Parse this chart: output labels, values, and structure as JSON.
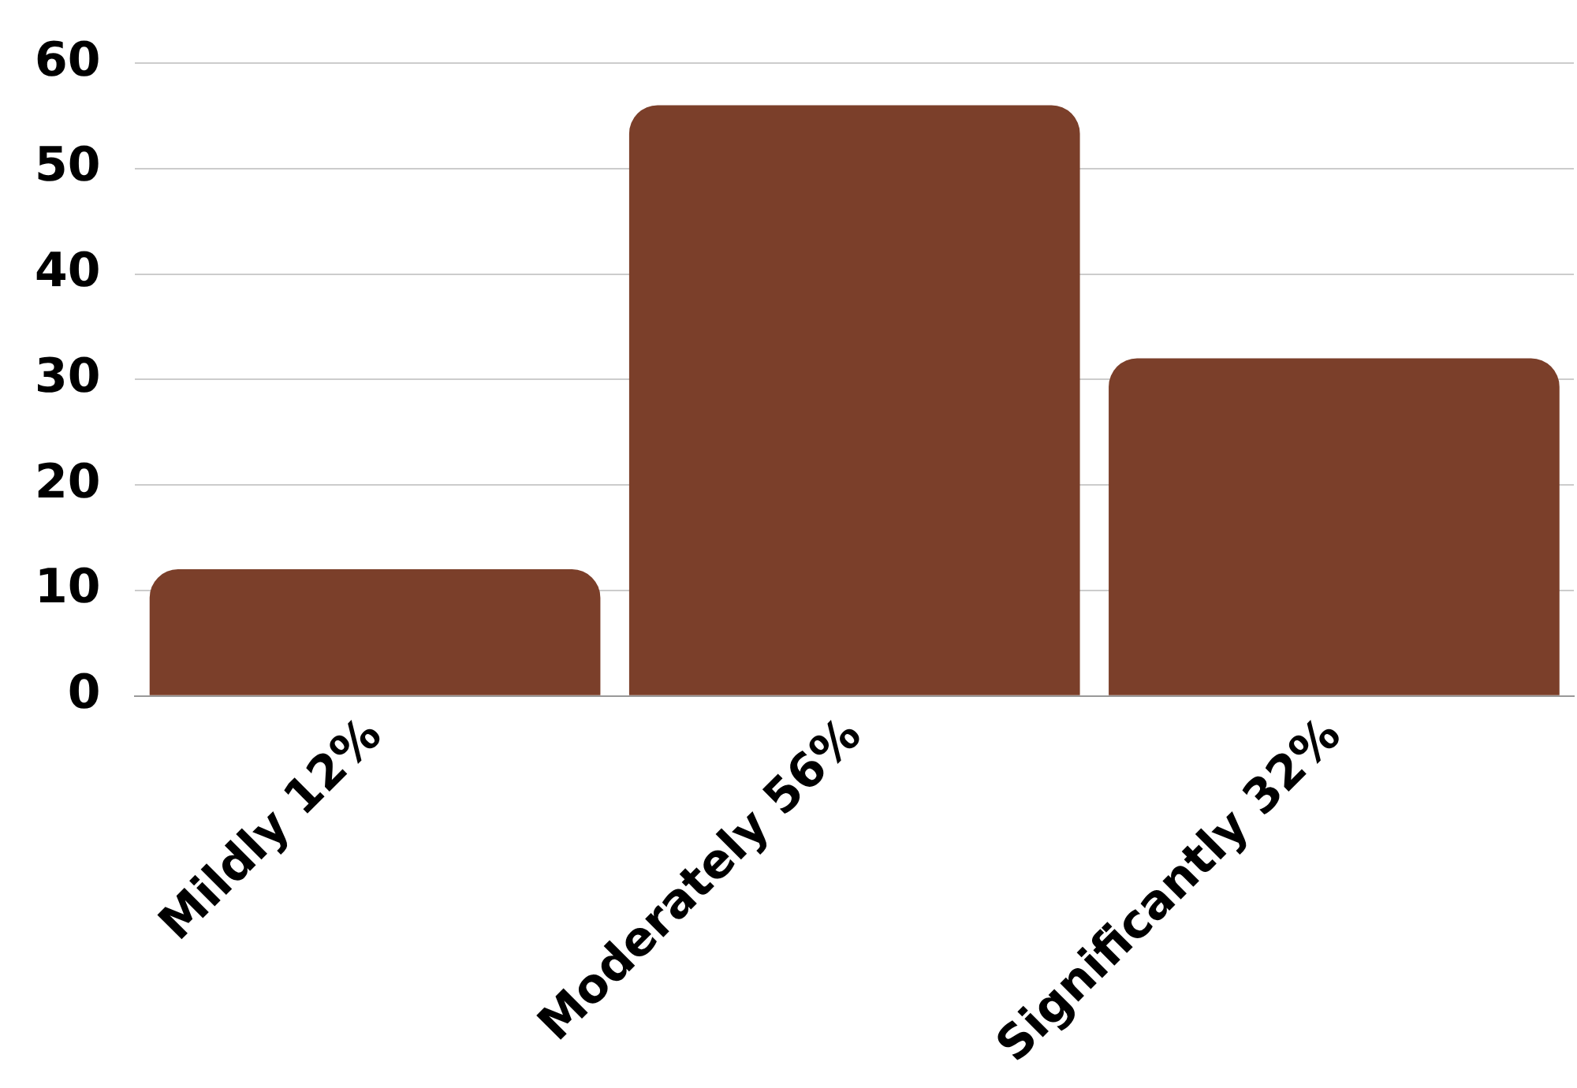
{
  "chart_data": {
    "type": "bar",
    "categories": [
      "Mildly 12%",
      "Moderately 56%",
      "Significantly 32%"
    ],
    "values": [
      12,
      56,
      32
    ],
    "color": "#7b3f2a",
    "ylim": [
      0,
      60
    ],
    "yticks": [
      0,
      10,
      20,
      30,
      40,
      50,
      60
    ],
    "grid": "y",
    "legend": false
  }
}
